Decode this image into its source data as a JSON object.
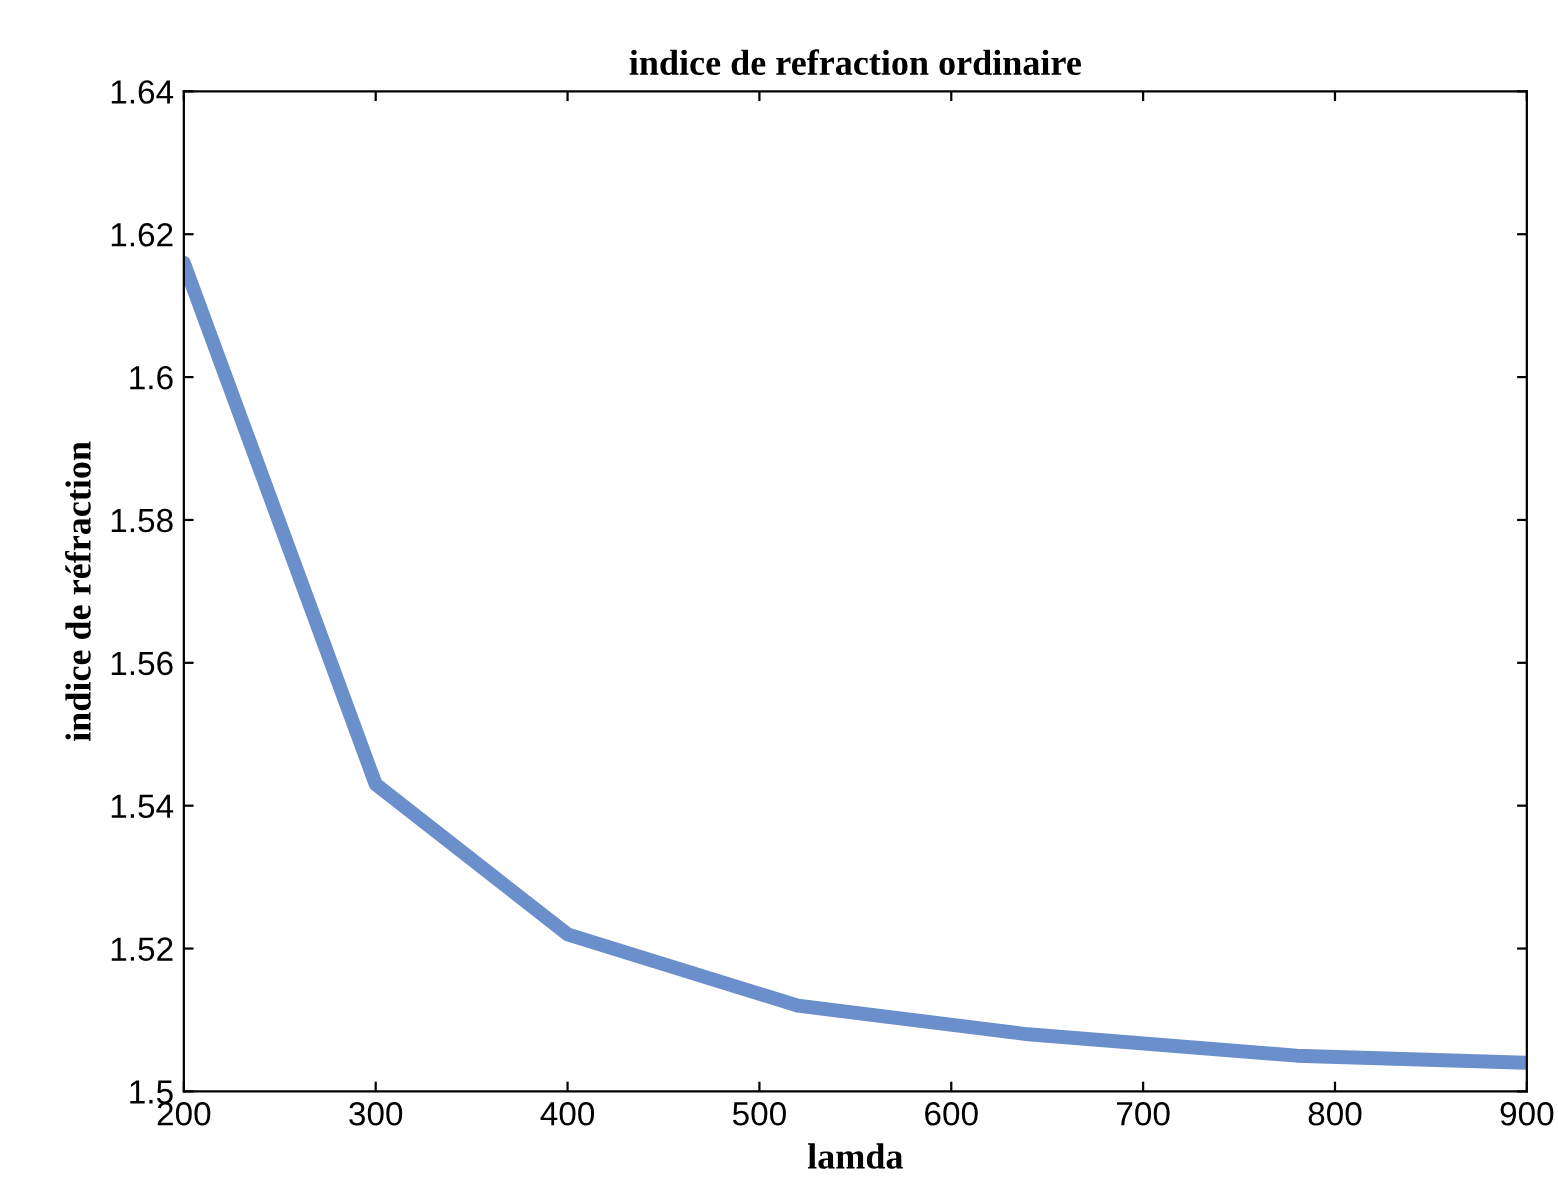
{
  "chart_data": {
    "type": "line",
    "title": "indice de refraction ordinaire",
    "xlabel": "lamda",
    "ylabel": "indice de réfraction",
    "x": [
      200,
      300,
      400,
      520,
      640,
      780,
      900
    ],
    "series": [
      {
        "color": "#6b8fcb",
        "values": [
          1.616,
          1.543,
          1.522,
          1.512,
          1.508,
          1.505,
          1.504
        ]
      }
    ],
    "xlim": [
      200,
      900
    ],
    "xticks": [
      200,
      300,
      400,
      500,
      600,
      700,
      800,
      900
    ],
    "ylim": [
      1.5,
      1.64
    ],
    "yticks": [
      {
        "value": 1.5,
        "label": "1.5"
      },
      1.52,
      1.54,
      1.56,
      1.58,
      {
        "value": 1.6,
        "label": "1.6"
      },
      1.62,
      1.64
    ],
    "grid": false,
    "legend": false,
    "marker": "none",
    "line_style": "solid"
  }
}
